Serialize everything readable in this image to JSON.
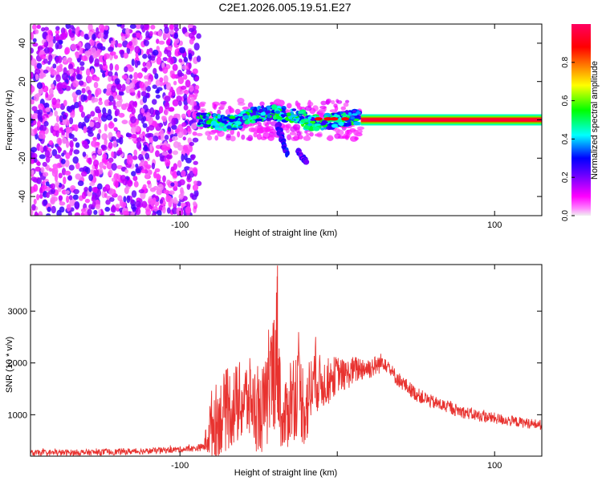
{
  "title": "C2E1.2026.005.19.51.E27",
  "chart_data": [
    {
      "type": "heatmap",
      "description_xlabel": "Height of straight line (km)",
      "xlabel": "Height of straight line (km)",
      "ylabel": "Frequency (Hz)",
      "xlim": [
        -195,
        130
      ],
      "ylim": [
        -50,
        50
      ],
      "xticks": [
        -100,
        0,
        100
      ],
      "xtick_labels": [
        "-100",
        "",
        "100"
      ],
      "yticks": [
        -40,
        -20,
        0,
        20,
        40
      ],
      "ytick_labels": [
        "-40",
        "-20",
        "0",
        "20",
        "40"
      ],
      "colorbar": {
        "label": "Normalized spectral amplitude",
        "range": [
          0,
          1
        ],
        "ticks": [
          0.0,
          0.2,
          0.4,
          0.6,
          0.8
        ],
        "tick_labels": [
          "0.0",
          "0.2",
          "0.4",
          "0.6",
          "0.8"
        ],
        "colormap": [
          "#f0f0f0",
          "#ff00ff",
          "#6000ff",
          "#0000ff",
          "#00ffff",
          "#00ff00",
          "#ffff00",
          "#ff8000",
          "#ff0000",
          "#ff0060"
        ]
      },
      "features": [
        {
          "name": "noise region",
          "x_range": [
            -195,
            -88
          ],
          "y_range": [
            -50,
            50
          ],
          "level": 0.15
        },
        {
          "name": "broad signal band",
          "x_range": [
            -88,
            15
          ],
          "center_y": 0,
          "level": 0.35
        },
        {
          "name": "secondary streak",
          "x_range": [
            -38,
            -32
          ],
          "y_range": [
            -18,
            -2
          ],
          "level": 0.3
        },
        {
          "name": "secondary streak",
          "x_range": [
            -25,
            -20
          ],
          "y_range": [
            -22,
            -16
          ],
          "level": 0.25
        },
        {
          "name": "strong carrier line",
          "x_range": [
            15,
            130
          ],
          "center_y": 0,
          "level": 0.95
        }
      ]
    },
    {
      "type": "line",
      "xlabel": "Height of straight line (km)",
      "ylabel": "SNR (10 * v/v)",
      "xlim": [
        -195,
        130
      ],
      "ylim": [
        200,
        3900
      ],
      "xticks": [
        -100,
        0,
        100
      ],
      "xtick_labels": [
        "-100",
        "",
        "100"
      ],
      "yticks": [
        1000,
        2000,
        3000
      ],
      "ytick_labels": [
        "1000",
        "2000",
        "3000"
      ],
      "color": "#e8322f",
      "series": [
        {
          "name": "SNR",
          "x": [
            -195,
            -150,
            -120,
            -100,
            -90,
            -85,
            -80,
            -70,
            -60,
            -55,
            -50,
            -45,
            -40,
            -38,
            -35,
            -30,
            -25,
            -20,
            -15,
            -10,
            -5,
            0,
            5,
            10,
            15,
            20,
            25,
            30,
            35,
            40,
            50,
            60,
            70,
            80,
            90,
            100,
            110,
            120,
            130
          ],
          "y": [
            260,
            275,
            300,
            330,
            350,
            380,
            800,
            1100,
            1250,
            1300,
            1000,
            1200,
            2000,
            2300,
            700,
            1300,
            1500,
            1100,
            1700,
            1600,
            1650,
            1800,
            1750,
            1850,
            1900,
            1900,
            1950,
            2050,
            1800,
            1650,
            1400,
            1250,
            1150,
            1050,
            980,
            930,
            880,
            840,
            800
          ],
          "spread": [
            60,
            60,
            60,
            60,
            60,
            80,
            700,
            800,
            800,
            800,
            800,
            900,
            1300,
            1600,
            500,
            900,
            900,
            800,
            700,
            500,
            450,
            350,
            300,
            280,
            250,
            220,
            200,
            180,
            160,
            150,
            140,
            130,
            125,
            120,
            115,
            110,
            105,
            100,
            100
          ]
        }
      ]
    }
  ]
}
